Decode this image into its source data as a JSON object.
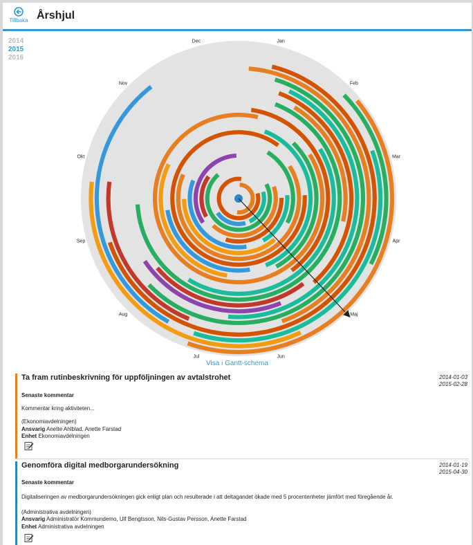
{
  "header": {
    "back_label": "Tillbaka",
    "title": "Årshjul"
  },
  "years": [
    {
      "label": "2014",
      "active": false
    },
    {
      "label": "2015",
      "active": true
    },
    {
      "label": "2016",
      "active": false
    }
  ],
  "months": [
    "Jan",
    "Feb",
    "Mar",
    "Apr",
    "Maj",
    "Jun",
    "Jul",
    "Aug",
    "Sep",
    "Okt",
    "Nov",
    "Dec"
  ],
  "colors": {
    "accent": "#3398cc",
    "ring_bg": "#e3e3e3",
    "palette": [
      "#e67e22",
      "#2e86c1",
      "#8e44ad",
      "#27ae60",
      "#f1c40f",
      "#c0392b",
      "#1abc9c",
      "#2c3e50",
      "#f39c12",
      "#d35400",
      "#2ecc71",
      "#3498db"
    ]
  },
  "gantt_link": "Visa i Gantt-schema",
  "activities": [
    {
      "title": "Ta fram rutinbeskrivning för uppföljningen av avtalstrohet",
      "date_start": "2014-01-03",
      "date_end": "2015-02-28",
      "comment_heading": "Senaste kommentar",
      "comment": "Kommentar kring aktiviteten...",
      "department": "(Ekonomiavdelningen)",
      "responsible_label": "Ansvarig",
      "responsible": "Anette Ahlblad, Anette Farstad",
      "unit_label": "Enhet",
      "unit": "Ekonomiavdelningen",
      "color": "#e67e22"
    },
    {
      "title": "Genomföra digital medborgarundersökning",
      "date_start": "2014-01-19",
      "date_end": "2015-04-30",
      "comment_heading": "Senaste kommentar",
      "comment": "Digitaliseringen av medborgarundersökningen gick enligt plan och resulterade i att deltagandet ökade med 5 procentenheter jämfört med föregående år.",
      "department": "(Administrativa avdelningen)",
      "responsible_label": "Ansvarig",
      "responsible": "Administratör Kommundemo, Ulf Bengtsson, Nils-Gustav Persson, Anette Farstad",
      "unit_label": "Enhet",
      "unit": "Administrativa avdelningen",
      "color": "#2e86c1"
    }
  ]
}
